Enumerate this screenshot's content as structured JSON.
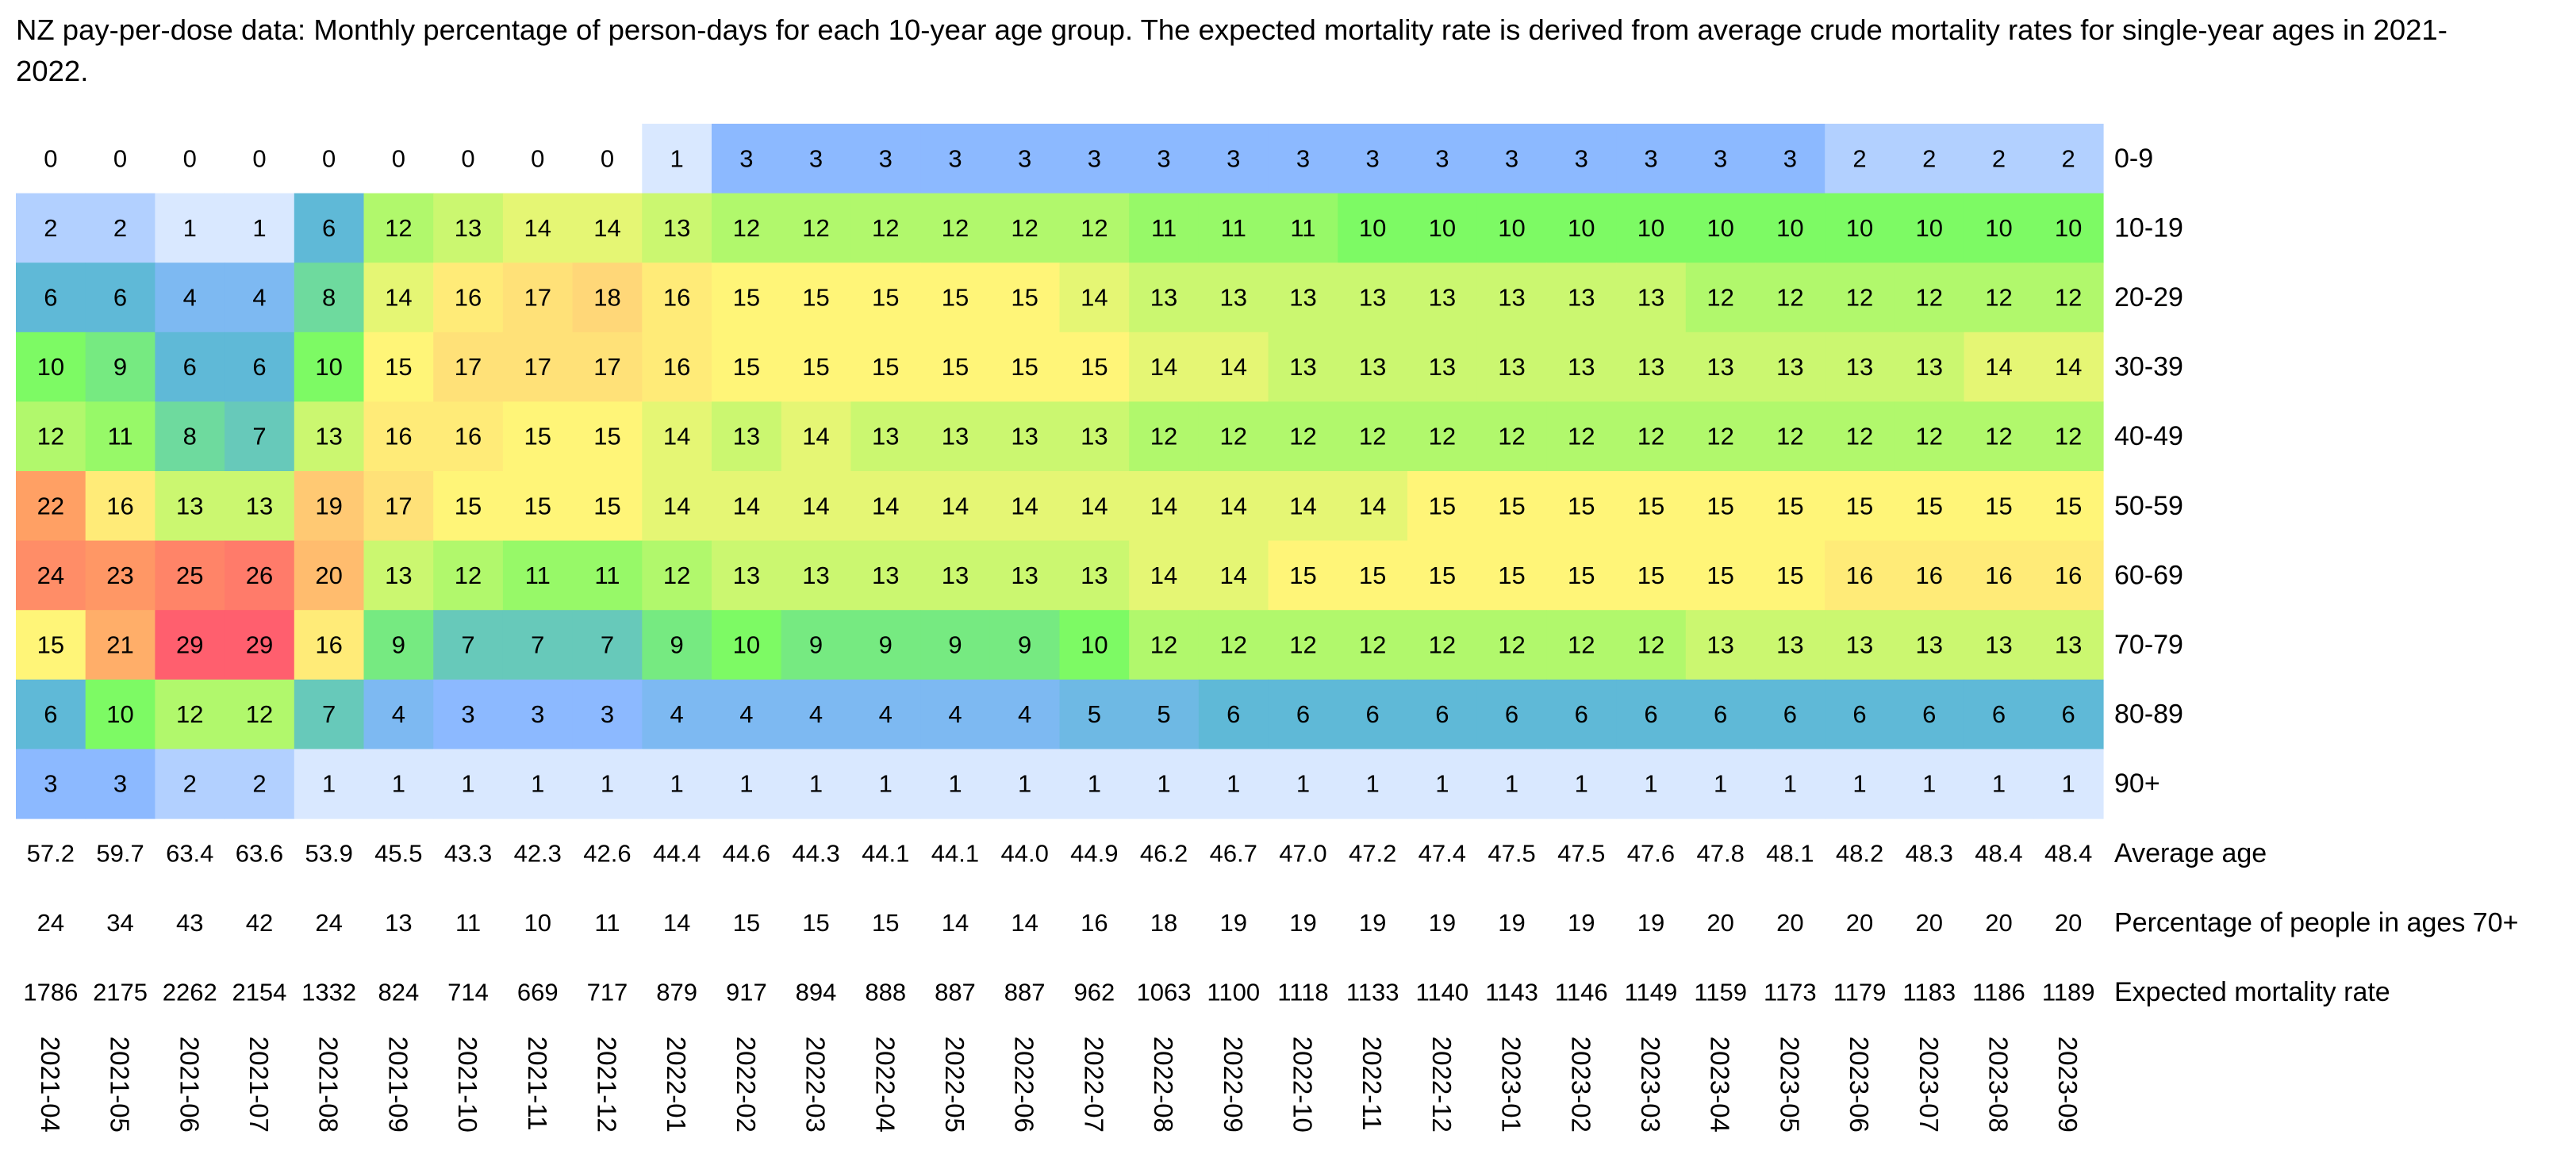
{
  "chart_data": {
    "type": "heatmap",
    "title": "NZ pay-per-dose data: Monthly percentage of person-days for each 10-year age group. The expected mortality rate is derived from average crude mortality rates for single-year ages in 2021-2022.",
    "columns": [
      "2021-04",
      "2021-05",
      "2021-06",
      "2021-07",
      "2021-08",
      "2021-09",
      "2021-10",
      "2021-11",
      "2021-12",
      "2022-01",
      "2022-02",
      "2022-03",
      "2022-04",
      "2022-05",
      "2022-06",
      "2022-07",
      "2022-08",
      "2022-09",
      "2022-10",
      "2022-11",
      "2022-12",
      "2023-01",
      "2023-02",
      "2023-03",
      "2023-04",
      "2023-05",
      "2023-06",
      "2023-07",
      "2023-08",
      "2023-09"
    ],
    "rows": [
      {
        "label": "0-9",
        "values": [
          0,
          0,
          0,
          0,
          0,
          0,
          0,
          0,
          0,
          1,
          3,
          3,
          3,
          3,
          3,
          3,
          3,
          3,
          3,
          3,
          3,
          3,
          3,
          3,
          3,
          3,
          2,
          2,
          2,
          2
        ]
      },
      {
        "label": "10-19",
        "values": [
          2,
          2,
          1,
          1,
          6,
          12,
          13,
          14,
          14,
          13,
          12,
          12,
          12,
          12,
          12,
          12,
          11,
          11,
          11,
          10,
          10,
          10,
          10,
          10,
          10,
          10,
          10,
          10,
          10,
          10
        ]
      },
      {
        "label": "20-29",
        "values": [
          6,
          6,
          4,
          4,
          8,
          14,
          16,
          17,
          18,
          16,
          15,
          15,
          15,
          15,
          15,
          14,
          13,
          13,
          13,
          13,
          13,
          13,
          13,
          13,
          12,
          12,
          12,
          12,
          12,
          12
        ]
      },
      {
        "label": "30-39",
        "values": [
          10,
          9,
          6,
          6,
          10,
          15,
          17,
          17,
          17,
          16,
          15,
          15,
          15,
          15,
          15,
          15,
          14,
          14,
          13,
          13,
          13,
          13,
          13,
          13,
          13,
          13,
          13,
          13,
          14,
          14
        ]
      },
      {
        "label": "40-49",
        "values": [
          12,
          11,
          8,
          7,
          13,
          16,
          16,
          15,
          15,
          14,
          13,
          14,
          13,
          13,
          13,
          13,
          12,
          12,
          12,
          12,
          12,
          12,
          12,
          12,
          12,
          12,
          12,
          12,
          12,
          12
        ]
      },
      {
        "label": "50-59",
        "values": [
          22,
          16,
          13,
          13,
          19,
          17,
          15,
          15,
          15,
          14,
          14,
          14,
          14,
          14,
          14,
          14,
          14,
          14,
          14,
          14,
          15,
          15,
          15,
          15,
          15,
          15,
          15,
          15,
          15,
          15
        ]
      },
      {
        "label": "60-69",
        "values": [
          24,
          23,
          25,
          26,
          20,
          13,
          12,
          11,
          11,
          12,
          13,
          13,
          13,
          13,
          13,
          13,
          14,
          14,
          15,
          15,
          15,
          15,
          15,
          15,
          15,
          15,
          16,
          16,
          16,
          16
        ]
      },
      {
        "label": "70-79",
        "values": [
          15,
          21,
          29,
          29,
          16,
          9,
          7,
          7,
          7,
          9,
          10,
          9,
          9,
          9,
          9,
          10,
          12,
          12,
          12,
          12,
          12,
          12,
          12,
          12,
          13,
          13,
          13,
          13,
          13,
          13
        ]
      },
      {
        "label": "80-89",
        "values": [
          6,
          10,
          12,
          12,
          7,
          4,
          3,
          3,
          3,
          4,
          4,
          4,
          4,
          4,
          4,
          5,
          5,
          6,
          6,
          6,
          6,
          6,
          6,
          6,
          6,
          6,
          6,
          6,
          6,
          6
        ]
      },
      {
        "label": "90+",
        "values": [
          3,
          3,
          2,
          2,
          1,
          1,
          1,
          1,
          1,
          1,
          1,
          1,
          1,
          1,
          1,
          1,
          1,
          1,
          1,
          1,
          1,
          1,
          1,
          1,
          1,
          1,
          1,
          1,
          1,
          1
        ]
      }
    ],
    "stats": [
      {
        "label": "Average age",
        "values": [
          "57.2",
          "59.7",
          "63.4",
          "63.6",
          "53.9",
          "45.5",
          "43.3",
          "42.3",
          "42.6",
          "44.4",
          "44.6",
          "44.3",
          "44.1",
          "44.1",
          "44.0",
          "44.9",
          "46.2",
          "46.7",
          "47.0",
          "47.2",
          "47.4",
          "47.5",
          "47.5",
          "47.6",
          "47.8",
          "48.1",
          "48.2",
          "48.3",
          "48.4",
          "48.4"
        ]
      },
      {
        "label": "Percentage of people in ages 70+",
        "values": [
          "24",
          "34",
          "43",
          "42",
          "24",
          "13",
          "11",
          "10",
          "11",
          "14",
          "15",
          "15",
          "15",
          "14",
          "14",
          "16",
          "18",
          "19",
          "19",
          "19",
          "19",
          "19",
          "19",
          "19",
          "20",
          "20",
          "20",
          "20",
          "20",
          "20"
        ]
      },
      {
        "label": "Expected mortality rate",
        "values": [
          "1786",
          "2175",
          "2262",
          "2154",
          "1332",
          "824",
          "714",
          "669",
          "717",
          "879",
          "917",
          "894",
          "888",
          "887",
          "887",
          "962",
          "1063",
          "1100",
          "1118",
          "1133",
          "1140",
          "1143",
          "1146",
          "1149",
          "1159",
          "1173",
          "1179",
          "1183",
          "1186",
          "1189"
        ]
      }
    ]
  }
}
